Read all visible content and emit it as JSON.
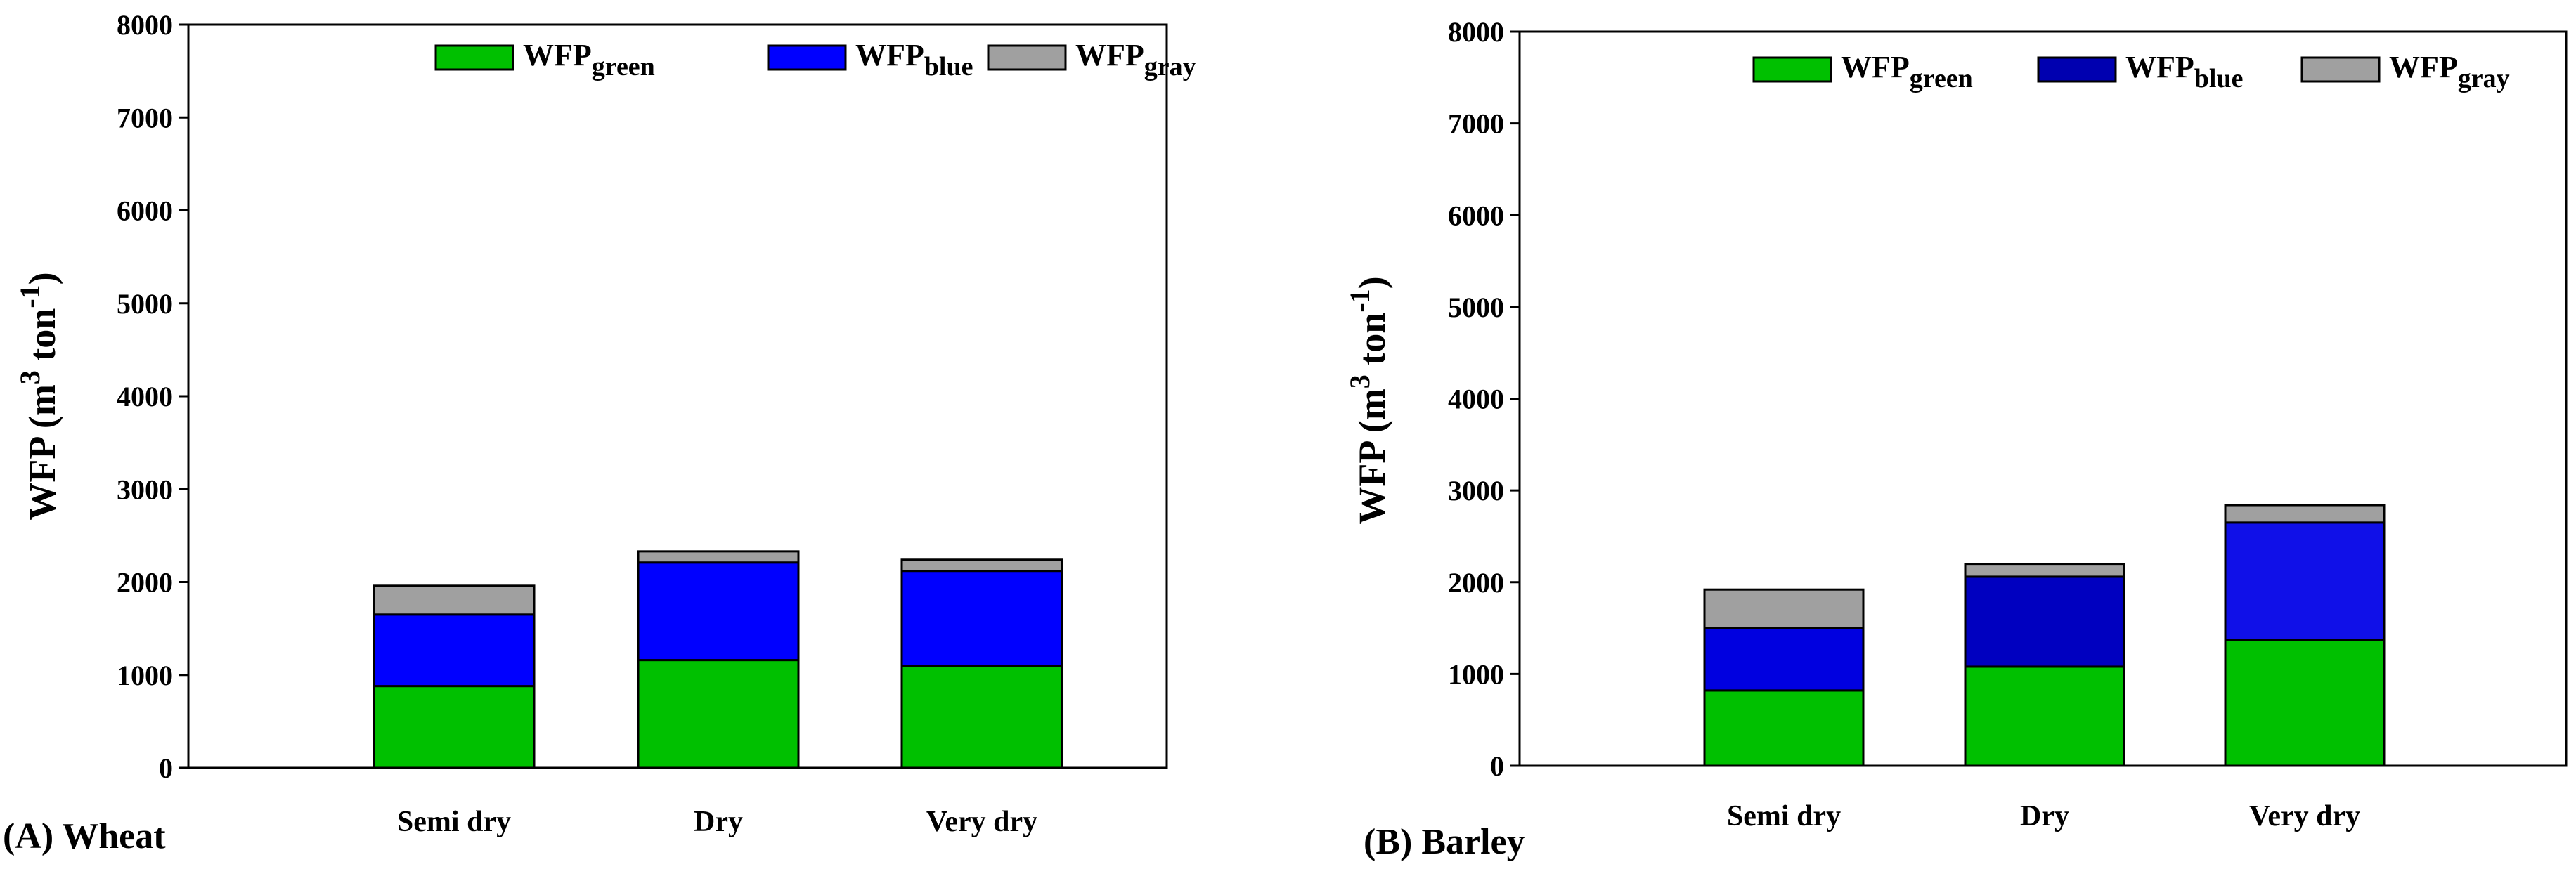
{
  "colors": {
    "wheat_green": "#00C000",
    "wheat_blue": "#0000FF",
    "wheat_gray": "#A0A0A0",
    "barley_green": "#00C000",
    "barley_blue_legend": "#0000B0",
    "barley_blue_dry": "#0000C0",
    "barley_blue_semi": "#0000E0",
    "barley_blue_verydry": "#1010E8",
    "barley_gray": "#A0A0A0"
  },
  "chart_data": [
    {
      "type": "bar",
      "stacked": true,
      "panel_label": "(A) Wheat",
      "ylabel_main": "WFP (m",
      "ylabel_sup1": "3",
      "ylabel_mid": " ton",
      "ylabel_sup2": "-1",
      "ylabel_end": ")",
      "ylim": [
        0,
        8000
      ],
      "yticks": [
        "0",
        "1000",
        "2000",
        "3000",
        "4000",
        "5000",
        "6000",
        "7000",
        "8000"
      ],
      "categories": [
        "Semi dry",
        "Dry",
        "Very dry"
      ],
      "legend_position": "top-right",
      "series": [
        {
          "name": "WFP",
          "subscript": "green",
          "values": [
            880,
            1160,
            1100
          ]
        },
        {
          "name": "WFP",
          "subscript": "blue",
          "values": [
            770,
            1050,
            1020
          ]
        },
        {
          "name": "WFP",
          "subscript": "gray",
          "values": [
            310,
            120,
            120
          ]
        }
      ]
    },
    {
      "type": "bar",
      "stacked": true,
      "panel_label": "(B) Barley",
      "ylabel_main": "WFP (m",
      "ylabel_sup1": "3",
      "ylabel_mid": " ton",
      "ylabel_sup2": "-1",
      "ylabel_end": ")",
      "ylim": [
        0,
        8000
      ],
      "yticks": [
        "0",
        "1000",
        "2000",
        "3000",
        "4000",
        "5000",
        "6000",
        "7000",
        "8000"
      ],
      "categories": [
        "Semi dry",
        "Dry",
        "Very dry"
      ],
      "legend_position": "top-right",
      "series": [
        {
          "name": "WFP",
          "subscript": "green",
          "values": [
            820,
            1080,
            1370
          ]
        },
        {
          "name": "WFP",
          "subscript": "blue",
          "values": [
            680,
            980,
            1280
          ]
        },
        {
          "name": "WFP",
          "subscript": "gray",
          "values": [
            420,
            140,
            190
          ]
        }
      ]
    }
  ]
}
